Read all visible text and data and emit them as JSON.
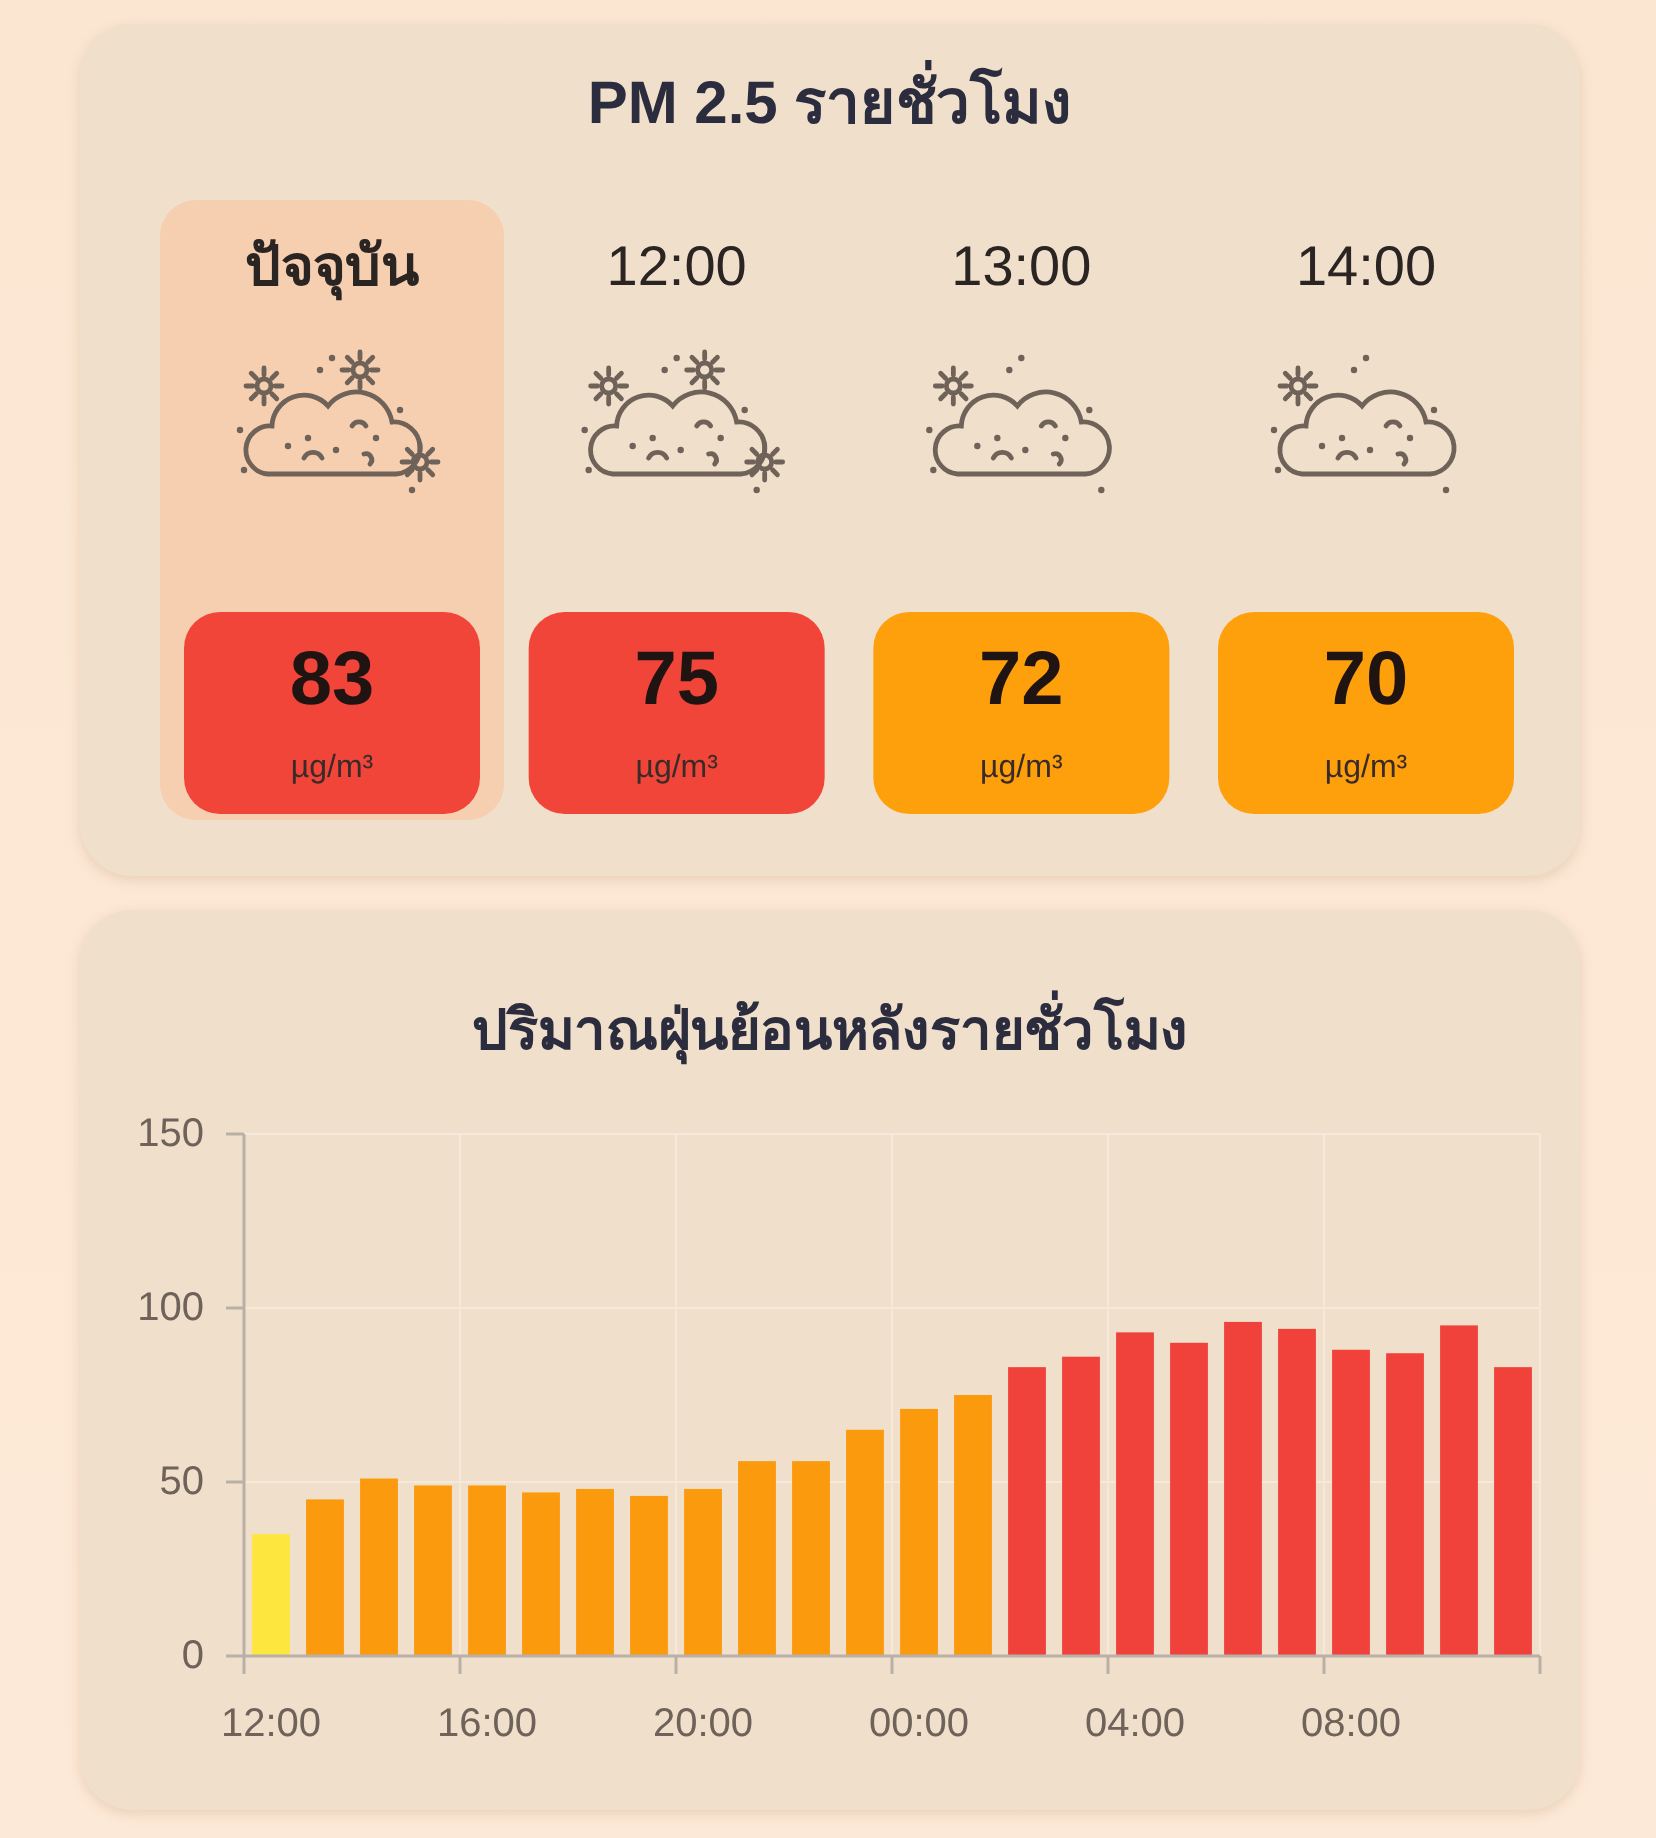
{
  "chart_data": [
    {
      "type": "other",
      "title": "PM 2.5 รายชั่วโมง",
      "values": [
        83,
        75,
        72,
        70
      ],
      "data_labels": true,
      "colors": [
        "#f2453a",
        "#f2453a",
        "#fea00c",
        "#fea00c"
      ],
      "annotations": [
        "ปัจจุบัน",
        "12:00",
        "13:00",
        "14:00",
        "µg/m³",
        "µg/m³",
        "µg/m³",
        "µg/m³"
      ]
    },
    {
      "type": "bar",
      "title": "ปริมาณฝุ่นย้อนหลังรายชั่วโมง",
      "categories": [
        "12:00",
        null,
        null,
        null,
        "16:00",
        null,
        null,
        null,
        "20:00",
        null,
        null,
        null,
        "00:00",
        null,
        null,
        null,
        "04:00",
        null,
        null,
        null,
        "08:00",
        null,
        null,
        null
      ],
      "values": [
        35,
        45,
        51,
        49,
        49,
        47,
        48,
        46,
        48,
        56,
        56,
        65,
        71,
        75,
        83,
        86,
        93,
        90,
        96,
        94,
        88,
        87,
        95,
        83
      ],
      "colors": [
        "#fde73f",
        "#fb9a0c",
        "#fb9a0c",
        "#fb9a0c",
        "#fb9a0c",
        "#fb9a0c",
        "#fb9a0c",
        "#fb9a0c",
        "#fb9a0c",
        "#fb9a0c",
        "#fb9a0c",
        "#fb9a0c",
        "#fb9a0c",
        "#fb9a0c",
        "#f0413a",
        "#f0413a",
        "#f0413a",
        "#f0413a",
        "#f0413a",
        "#f0413a",
        "#f0413a",
        "#f0413a",
        "#f0413a",
        "#f0413a"
      ],
      "ylim": [
        0,
        150
      ],
      "yticks": [
        0,
        50,
        100,
        150
      ],
      "grid": true
    }
  ]
}
